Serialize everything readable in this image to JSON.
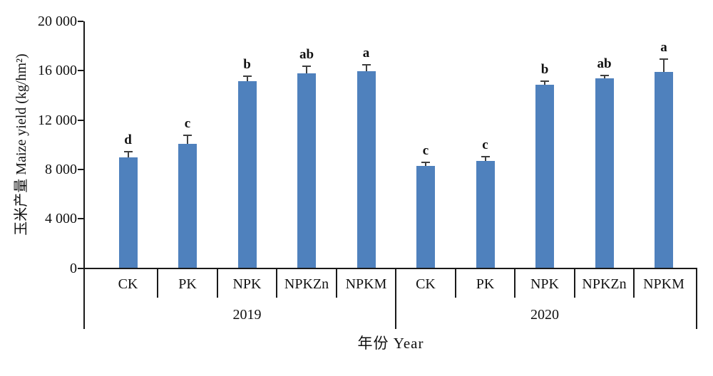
{
  "chart_data": {
    "type": "bar",
    "title": "",
    "ylabel": "玉米产量 Maize yield (kg/hm²)",
    "xlabel": "年份  Year",
    "ylim": [
      0,
      20000
    ],
    "ytick_interval": 4000,
    "yticks": [
      {
        "label": "20 000",
        "value": 20000
      },
      {
        "label": "16 000",
        "value": 16000
      },
      {
        "label": "12 000",
        "value": 12000
      },
      {
        "label": "8 000",
        "value": 8000
      },
      {
        "label": "4 000",
        "value": 4000
      },
      {
        "label": "0",
        "value": 0
      }
    ],
    "grid": false,
    "legend": false,
    "bar_color": "#4F81BD",
    "error_bar_color": "#3f3f3f",
    "axis_color": "#1a1a1a",
    "groups": [
      {
        "year": "2019",
        "categories": [
          "CK",
          "PK",
          "NPK",
          "NPKZn",
          "NPKM"
        ],
        "values": [
          9000,
          10050,
          15150,
          15800,
          15950
        ],
        "errors": [
          400,
          650,
          350,
          500,
          500
        ],
        "sig_letters": [
          "d",
          "c",
          "b",
          "ab",
          "a"
        ]
      },
      {
        "year": "2020",
        "categories": [
          "CK",
          "PK",
          "NPK",
          "NPKZn",
          "NPKM"
        ],
        "values": [
          8300,
          8700,
          14850,
          15400,
          15900
        ],
        "errors": [
          200,
          300,
          220,
          150,
          1000
        ],
        "sig_letters": [
          "c",
          "c",
          "b",
          "ab",
          "a"
        ]
      }
    ]
  }
}
